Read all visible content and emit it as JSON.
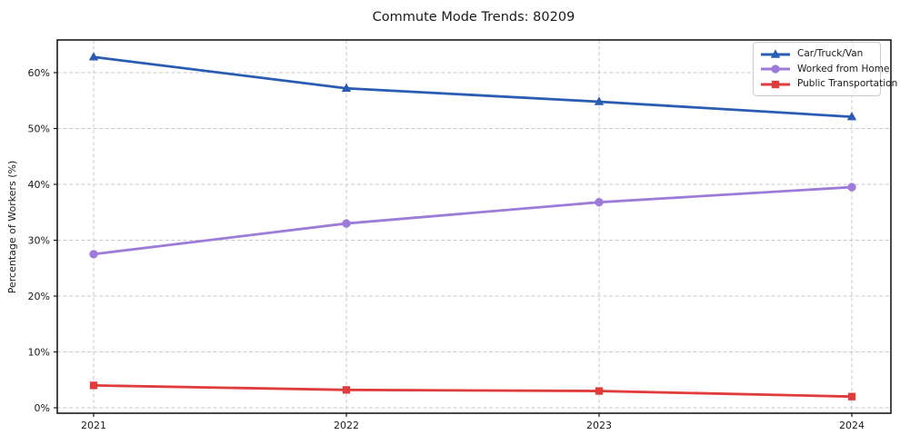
{
  "chart_data": {
    "type": "line",
    "title": "Commute Mode Trends: 80209",
    "xlabel": "",
    "ylabel": "Percentage of Workers (%)",
    "categories": [
      "2021",
      "2022",
      "2023",
      "2024"
    ],
    "series": [
      {
        "name": "Car/Truck/Van",
        "slug": "car-truck-van",
        "marker": "triangle",
        "color": "#2a5cb4",
        "values": [
          62.8,
          57.2,
          54.8,
          52.1
        ]
      },
      {
        "name": "Worked from Home",
        "slug": "worked-from-home",
        "marker": "circle",
        "color": "#9d7bd8",
        "values": [
          27.5,
          33.0,
          36.8,
          39.5
        ]
      },
      {
        "name": "Public Transportation",
        "slug": "public-transportation",
        "marker": "square",
        "color": "#e03c3c",
        "values": [
          4.0,
          3.2,
          3.0,
          2.0
        ]
      }
    ],
    "y_ticks": {
      "values": [
        0,
        10,
        20,
        30,
        40,
        50,
        60
      ],
      "labels": [
        "0%",
        "10%",
        "20%",
        "30%",
        "40%",
        "50%",
        "60%"
      ]
    },
    "ylim": [
      -1,
      66
    ],
    "grid": true,
    "grid_style": "dashed",
    "legend_position": "upper right",
    "colors": {
      "grid": "#c9c9c9",
      "axis": "#1a1a1a",
      "tick_label": "#1a1a1a",
      "background": "#ffffff",
      "legend_border": "#cccccc"
    }
  }
}
